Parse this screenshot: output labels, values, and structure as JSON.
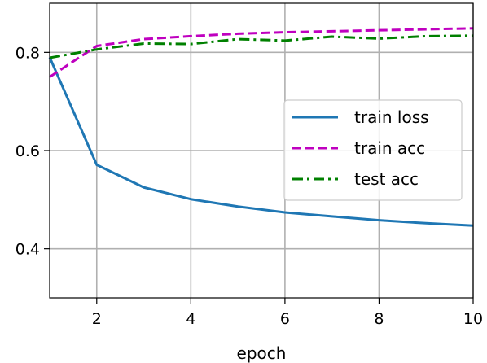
{
  "chart_data": {
    "type": "line",
    "xlabel": "epoch",
    "ylabel": "",
    "xlim": [
      1,
      10
    ],
    "ylim": [
      0.3,
      0.9
    ],
    "xticks": [
      2,
      4,
      6,
      8,
      10
    ],
    "xtick_labels": [
      "2",
      "4",
      "6",
      "8",
      "10"
    ],
    "yticks": [
      0.4,
      0.6,
      0.8
    ],
    "ytick_labels": [
      "0.4",
      "0.6",
      "0.8"
    ],
    "grid": true,
    "legend_position": "center-right",
    "x": [
      1,
      2,
      3,
      4,
      5,
      6,
      7,
      8,
      9,
      10
    ],
    "series": [
      {
        "name": "train loss",
        "color": "#1f77b4",
        "linestyle": "solid",
        "values": [
          0.79,
          0.571,
          0.525,
          0.501,
          0.486,
          0.474,
          0.466,
          0.458,
          0.452,
          0.447
        ]
      },
      {
        "name": "train acc",
        "color": "#bf00bf",
        "linestyle": "dashed",
        "values": [
          0.75,
          0.813,
          0.827,
          0.833,
          0.838,
          0.841,
          0.843,
          0.845,
          0.847,
          0.849
        ]
      },
      {
        "name": "test acc",
        "color": "#008000",
        "linestyle": "dashdot",
        "values": [
          0.789,
          0.806,
          0.818,
          0.817,
          0.827,
          0.824,
          0.832,
          0.828,
          0.833,
          0.834
        ]
      }
    ]
  }
}
